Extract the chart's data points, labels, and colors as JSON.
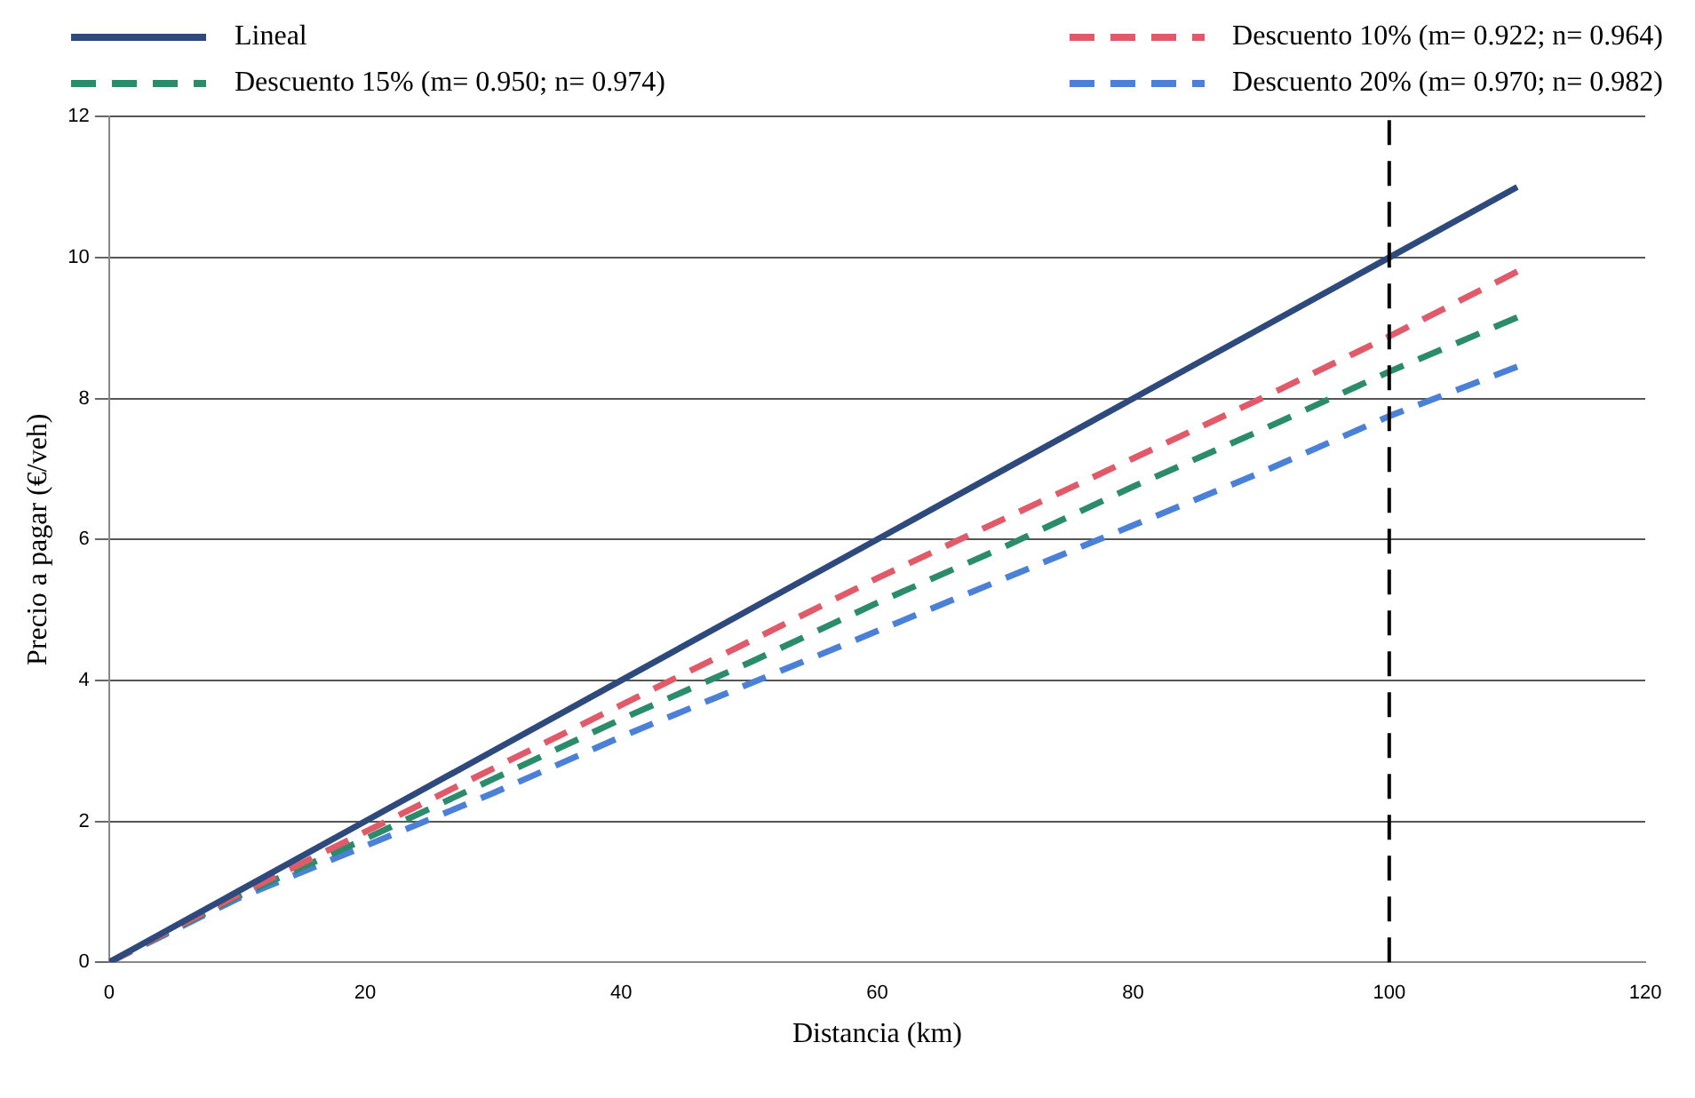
{
  "chart_data": {
    "type": "line",
    "xlabel": "Distancia (km)",
    "ylabel": "Precio a pagar (€/veh)",
    "x": [
      0,
      10,
      20,
      30,
      40,
      50,
      60,
      70,
      80,
      90,
      100,
      110
    ],
    "series": [
      {
        "name": "Lineal",
        "color": "#2e4a7d",
        "line_style": "solid",
        "values": [
          0,
          1,
          2,
          3,
          4,
          5,
          6,
          7,
          8,
          9,
          10,
          11
        ]
      },
      {
        "name": "Descuento 10% (m= 0.922; n= 0.964)",
        "color": "#e05a6a",
        "line_style": "dashed",
        "values": [
          0,
          0.95,
          1.85,
          2.75,
          3.65,
          4.55,
          5.45,
          6.3,
          7.15,
          8.0,
          8.88,
          9.8
        ]
      },
      {
        "name": "Descuento 15% (m= 0.950; n= 0.974)",
        "color": "#2a8c6a",
        "line_style": "dashed",
        "values": [
          0,
          0.93,
          1.75,
          2.6,
          3.45,
          4.25,
          5.1,
          5.9,
          6.75,
          7.55,
          8.38,
          9.15
        ]
      },
      {
        "name": "Descuento 20% (m= 0.970; n= 0.982)",
        "color": "#4a80d8",
        "line_style": "dashed",
        "values": [
          0,
          0.9,
          1.65,
          2.4,
          3.2,
          3.95,
          4.7,
          5.45,
          6.2,
          6.95,
          7.75,
          8.45
        ]
      }
    ],
    "xlim": [
      0,
      120
    ],
    "xticks": [
      0,
      20,
      40,
      60,
      80,
      100,
      120
    ],
    "ylim": [
      0,
      12
    ],
    "yticks": [
      0,
      2,
      4,
      6,
      8,
      10,
      12
    ],
    "grid": "y",
    "legend": "top",
    "marker": "none",
    "ref_lines": [
      {
        "axis": "x",
        "value": 100,
        "color": "#000000",
        "line_style": "dashed"
      }
    ]
  }
}
